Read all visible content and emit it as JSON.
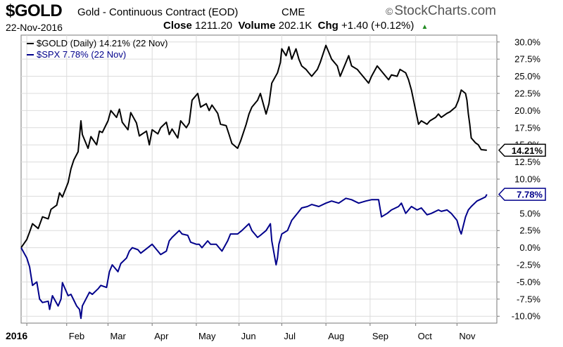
{
  "header": {
    "symbol": "$GOLD",
    "description": "Gold - Continuous Contract (EOD)",
    "exchange": "CME",
    "brand": "StockCharts.com",
    "brand_mark": "©",
    "date": "22-Nov-2016",
    "close_label": "Close",
    "close_value": "1211.20",
    "volume_label": "Volume",
    "volume_value": "202.1K",
    "chg_label": "Chg",
    "chg_value": "+1.40 (+0.12%)",
    "chg_arrow": "▲"
  },
  "chart_data": {
    "type": "line",
    "x_tick_labels": [
      "2016",
      "Feb",
      "Mar",
      "Apr",
      "May",
      "Jun",
      "Jul",
      "Aug",
      "Sep",
      "Oct",
      "Nov"
    ],
    "x_range": [
      "2015-12-31",
      "2016-11-29"
    ],
    "ylim": [
      -11,
      31
    ],
    "y_ticks": [
      30,
      27.5,
      25,
      22.5,
      20,
      17.5,
      15,
      12.5,
      10,
      7.5,
      5,
      2.5,
      0,
      -2.5,
      -5,
      -7.5,
      -10
    ],
    "y_tick_labels": [
      "30.0%",
      "27.5%",
      "25.0%",
      "22.5%",
      "20.0%",
      "17.5%",
      "15.0%",
      "12.5%",
      "10.0%",
      "7.5%",
      "5.0%",
      "2.5%",
      "0.0%",
      "-2.5%",
      "-5.0%",
      "-7.5%",
      "-10.0%"
    ],
    "grid": true,
    "legend_position": "top-left",
    "series": [
      {
        "name": "$GOLD (Daily) 14.21% (22 Nov)",
        "color": "#000000",
        "last_label": "14.21%",
        "points": [
          [
            "2015-12-31",
            0.0
          ],
          [
            "2016-01-04",
            1.2
          ],
          [
            "2016-01-06",
            2.3
          ],
          [
            "2016-01-08",
            3.5
          ],
          [
            "2016-01-12",
            2.8
          ],
          [
            "2016-01-15",
            4.5
          ],
          [
            "2016-01-19",
            4.2
          ],
          [
            "2016-01-21",
            5.6
          ],
          [
            "2016-01-25",
            6.2
          ],
          [
            "2016-01-27",
            8.0
          ],
          [
            "2016-01-29",
            7.4
          ],
          [
            "2016-02-02",
            9.5
          ],
          [
            "2016-02-04",
            11.5
          ],
          [
            "2016-02-06",
            12.8
          ],
          [
            "2016-02-09",
            14.0
          ],
          [
            "2016-02-11",
            18.5
          ],
          [
            "2016-02-12",
            16.5
          ],
          [
            "2016-02-16",
            14.5
          ],
          [
            "2016-02-18",
            16.2
          ],
          [
            "2016-02-22",
            15.0
          ],
          [
            "2016-02-24",
            17.0
          ],
          [
            "2016-02-26",
            16.8
          ],
          [
            "2016-03-01",
            18.5
          ],
          [
            "2016-03-03",
            20.0
          ],
          [
            "2016-03-07",
            19.0
          ],
          [
            "2016-03-09",
            20.2
          ],
          [
            "2016-03-11",
            18.3
          ],
          [
            "2016-03-15",
            17.2
          ],
          [
            "2016-03-17",
            19.7
          ],
          [
            "2016-03-21",
            18.2
          ],
          [
            "2016-03-23",
            16.3
          ],
          [
            "2016-03-28",
            17.0
          ],
          [
            "2016-03-30",
            15.0
          ],
          [
            "2016-04-01",
            17.2
          ],
          [
            "2016-04-05",
            16.6
          ],
          [
            "2016-04-07",
            17.5
          ],
          [
            "2016-04-11",
            18.3
          ],
          [
            "2016-04-13",
            16.5
          ],
          [
            "2016-04-15",
            17.3
          ],
          [
            "2016-04-19",
            16.0
          ],
          [
            "2016-04-21",
            18.5
          ],
          [
            "2016-04-25",
            17.5
          ],
          [
            "2016-04-27",
            18.2
          ],
          [
            "2016-04-29",
            21.5
          ],
          [
            "2016-05-03",
            22.5
          ],
          [
            "2016-05-05",
            20.5
          ],
          [
            "2016-05-09",
            21.0
          ],
          [
            "2016-05-11",
            20.0
          ],
          [
            "2016-05-13",
            20.8
          ],
          [
            "2016-05-17",
            19.6
          ],
          [
            "2016-05-19",
            18.0
          ],
          [
            "2016-05-23",
            17.8
          ],
          [
            "2016-05-25",
            16.5
          ],
          [
            "2016-05-27",
            15.2
          ],
          [
            "2016-05-31",
            14.5
          ],
          [
            "2016-06-02",
            15.5
          ],
          [
            "2016-06-06",
            18.0
          ],
          [
            "2016-06-08",
            19.5
          ],
          [
            "2016-06-10",
            20.5
          ],
          [
            "2016-06-14",
            21.5
          ],
          [
            "2016-06-16",
            22.5
          ],
          [
            "2016-06-20",
            19.5
          ],
          [
            "2016-06-22",
            21.0
          ],
          [
            "2016-06-24",
            24.0
          ],
          [
            "2016-06-28",
            25.5
          ],
          [
            "2016-06-30",
            27.0
          ],
          [
            "2016-07-01",
            29.0
          ],
          [
            "2016-07-04",
            28.0
          ],
          [
            "2016-07-06",
            29.3
          ],
          [
            "2016-07-08",
            27.5
          ],
          [
            "2016-07-11",
            29.0
          ],
          [
            "2016-07-13",
            27.5
          ],
          [
            "2016-07-15",
            26.5
          ],
          [
            "2016-07-18",
            26.0
          ],
          [
            "2016-07-20",
            25.5
          ],
          [
            "2016-07-22",
            25.0
          ],
          [
            "2016-07-26",
            26.0
          ],
          [
            "2016-07-28",
            27.0
          ],
          [
            "2016-08-01",
            29.5
          ],
          [
            "2016-08-03",
            28.5
          ],
          [
            "2016-08-05",
            27.5
          ],
          [
            "2016-08-09",
            26.5
          ],
          [
            "2016-08-11",
            25.0
          ],
          [
            "2016-08-15",
            27.0
          ],
          [
            "2016-08-17",
            28.0
          ],
          [
            "2016-08-19",
            26.5
          ],
          [
            "2016-08-23",
            26.0
          ],
          [
            "2016-08-25",
            25.5
          ],
          [
            "2016-08-29",
            24.5
          ],
          [
            "2016-08-31",
            24.0
          ],
          [
            "2016-09-02",
            25.0
          ],
          [
            "2016-09-06",
            26.5
          ],
          [
            "2016-09-08",
            26.0
          ],
          [
            "2016-09-12",
            25.0
          ],
          [
            "2016-09-14",
            24.5
          ],
          [
            "2016-09-16",
            25.2
          ],
          [
            "2016-09-20",
            25.0
          ],
          [
            "2016-09-22",
            26.0
          ],
          [
            "2016-09-26",
            25.5
          ],
          [
            "2016-09-28",
            24.5
          ],
          [
            "2016-09-30",
            23.0
          ],
          [
            "2016-10-04",
            19.0
          ],
          [
            "2016-10-05",
            18.0
          ],
          [
            "2016-10-07",
            18.5
          ],
          [
            "2016-10-11",
            18.0
          ],
          [
            "2016-10-13",
            18.5
          ],
          [
            "2016-10-17",
            19.0
          ],
          [
            "2016-10-19",
            19.5
          ],
          [
            "2016-10-21",
            19.0
          ],
          [
            "2016-10-25",
            19.6
          ],
          [
            "2016-10-27",
            19.8
          ],
          [
            "2016-10-31",
            20.5
          ],
          [
            "2016-11-02",
            21.5
          ],
          [
            "2016-11-04",
            23.0
          ],
          [
            "2016-11-07",
            22.5
          ],
          [
            "2016-11-08",
            21.5
          ],
          [
            "2016-11-09",
            19.5
          ],
          [
            "2016-11-10",
            18.0
          ],
          [
            "2016-11-11",
            16.0
          ],
          [
            "2016-11-14",
            15.3
          ],
          [
            "2016-11-16",
            15.0
          ],
          [
            "2016-11-18",
            14.3
          ],
          [
            "2016-11-22",
            14.21
          ]
        ]
      },
      {
        "name": "$SPX 7.78% (22 Nov)",
        "color": "#00008b",
        "last_label": "7.78%",
        "points": [
          [
            "2015-12-31",
            0.0
          ],
          [
            "2016-01-04",
            -1.5
          ],
          [
            "2016-01-06",
            -2.8
          ],
          [
            "2016-01-08",
            -5.5
          ],
          [
            "2016-01-11",
            -5.0
          ],
          [
            "2016-01-13",
            -7.5
          ],
          [
            "2016-01-15",
            -8.0
          ],
          [
            "2016-01-19",
            -7.8
          ],
          [
            "2016-01-20",
            -9.0
          ],
          [
            "2016-01-22",
            -7.0
          ],
          [
            "2016-01-26",
            -8.5
          ],
          [
            "2016-01-28",
            -7.5
          ],
          [
            "2016-01-29",
            -5.1
          ],
          [
            "2016-02-02",
            -7.0
          ],
          [
            "2016-02-04",
            -6.8
          ],
          [
            "2016-02-08",
            -8.5
          ],
          [
            "2016-02-10",
            -9.0
          ],
          [
            "2016-02-11",
            -10.3
          ],
          [
            "2016-02-12",
            -8.5
          ],
          [
            "2016-02-17",
            -6.5
          ],
          [
            "2016-02-19",
            -6.8
          ],
          [
            "2016-02-23",
            -6.0
          ],
          [
            "2016-02-25",
            -5.5
          ],
          [
            "2016-02-29",
            -5.8
          ],
          [
            "2016-03-02",
            -3.5
          ],
          [
            "2016-03-04",
            -2.5
          ],
          [
            "2016-03-08",
            -3.5
          ],
          [
            "2016-03-10",
            -2.3
          ],
          [
            "2016-03-14",
            -1.5
          ],
          [
            "2016-03-16",
            -0.5
          ],
          [
            "2016-03-18",
            0.0
          ],
          [
            "2016-03-22",
            -0.3
          ],
          [
            "2016-03-24",
            -0.8
          ],
          [
            "2016-03-29",
            0.0
          ],
          [
            "2016-04-01",
            0.5
          ],
          [
            "2016-04-05",
            -0.5
          ],
          [
            "2016-04-07",
            -1.0
          ],
          [
            "2016-04-11",
            -0.5
          ],
          [
            "2016-04-13",
            1.0
          ],
          [
            "2016-04-15",
            1.5
          ],
          [
            "2016-04-20",
            2.5
          ],
          [
            "2016-04-22",
            2.0
          ],
          [
            "2016-04-26",
            1.8
          ],
          [
            "2016-04-28",
            0.8
          ],
          [
            "2016-05-02",
            0.5
          ],
          [
            "2016-05-04",
            0.5
          ],
          [
            "2016-05-06",
            0.0
          ],
          [
            "2016-05-10",
            1.0
          ],
          [
            "2016-05-12",
            0.5
          ],
          [
            "2016-05-16",
            0.5
          ],
          [
            "2016-05-18",
            0.0
          ],
          [
            "2016-05-20",
            -0.5
          ],
          [
            "2016-05-24",
            1.0
          ],
          [
            "2016-05-26",
            2.0
          ],
          [
            "2016-05-31",
            2.0
          ],
          [
            "2016-06-03",
            2.5
          ],
          [
            "2016-06-08",
            3.5
          ],
          [
            "2016-06-10",
            2.5
          ],
          [
            "2016-06-14",
            1.5
          ],
          [
            "2016-06-16",
            1.8
          ],
          [
            "2016-06-20",
            2.5
          ],
          [
            "2016-06-23",
            3.5
          ],
          [
            "2016-06-24",
            1.0
          ],
          [
            "2016-06-27",
            -2.5
          ],
          [
            "2016-06-28",
            -1.5
          ],
          [
            "2016-06-29",
            0.5
          ],
          [
            "2016-07-01",
            2.0
          ],
          [
            "2016-07-05",
            2.5
          ],
          [
            "2016-07-08",
            4.0
          ],
          [
            "2016-07-12",
            5.0
          ],
          [
            "2016-07-15",
            5.8
          ],
          [
            "2016-07-19",
            6.0
          ],
          [
            "2016-07-22",
            6.3
          ],
          [
            "2016-07-27",
            6.0
          ],
          [
            "2016-08-01",
            6.5
          ],
          [
            "2016-08-05",
            6.8
          ],
          [
            "2016-08-10",
            6.5
          ],
          [
            "2016-08-15",
            7.2
          ],
          [
            "2016-08-19",
            7.0
          ],
          [
            "2016-08-24",
            6.5
          ],
          [
            "2016-08-29",
            6.8
          ],
          [
            "2016-09-02",
            7.0
          ],
          [
            "2016-09-07",
            7.0
          ],
          [
            "2016-09-09",
            4.5
          ],
          [
            "2016-09-13",
            5.0
          ],
          [
            "2016-09-16",
            5.5
          ],
          [
            "2016-09-21",
            6.0
          ],
          [
            "2016-09-23",
            6.5
          ],
          [
            "2016-09-26",
            5.0
          ],
          [
            "2016-09-30",
            6.0
          ],
          [
            "2016-10-04",
            5.5
          ],
          [
            "2016-10-07",
            5.8
          ],
          [
            "2016-10-11",
            4.8
          ],
          [
            "2016-10-14",
            5.0
          ],
          [
            "2016-10-19",
            5.5
          ],
          [
            "2016-10-21",
            5.3
          ],
          [
            "2016-10-25",
            5.5
          ],
          [
            "2016-10-28",
            5.0
          ],
          [
            "2016-11-01",
            4.0
          ],
          [
            "2016-11-03",
            2.5
          ],
          [
            "2016-11-04",
            2.0
          ],
          [
            "2016-11-07",
            4.5
          ],
          [
            "2016-11-09",
            5.5
          ],
          [
            "2016-11-11",
            6.0
          ],
          [
            "2016-11-15",
            6.8
          ],
          [
            "2016-11-17",
            7.0
          ],
          [
            "2016-11-21",
            7.4
          ],
          [
            "2016-11-22",
            7.78
          ]
        ]
      }
    ]
  }
}
